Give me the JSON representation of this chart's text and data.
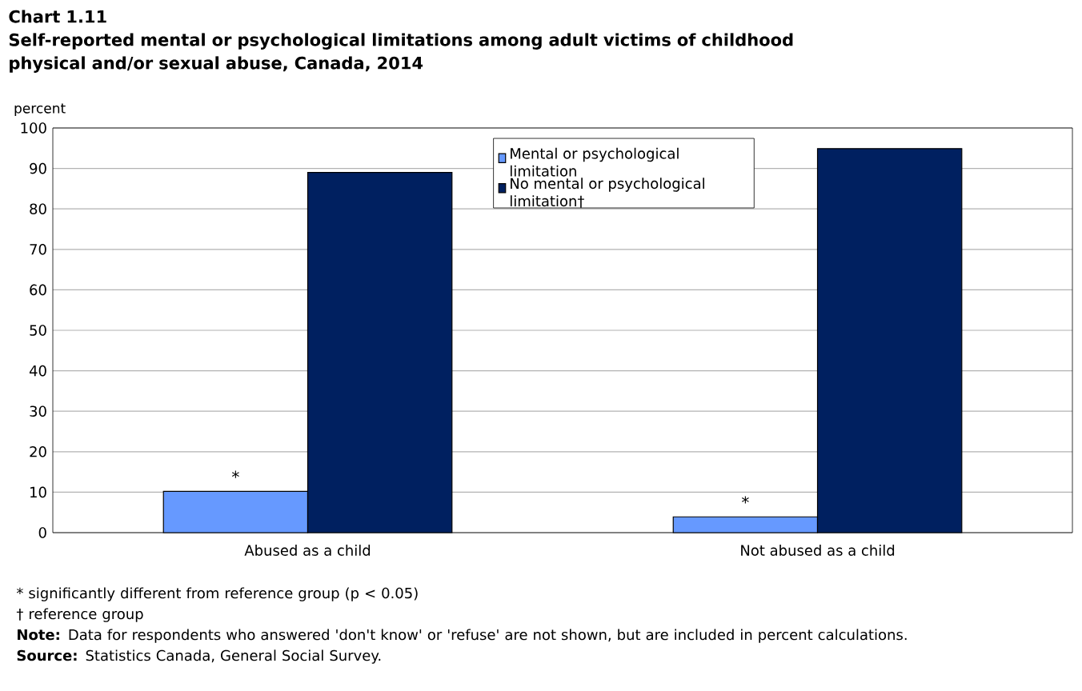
{
  "chart_data": {
    "type": "bar",
    "title": "Chart 1.11",
    "subtitle": "Self-reported mental or psychological limitations among adult victims of childhood physical and/or sexual abuse, Canada, 2014",
    "ylabel": "percent",
    "categories": [
      "Abused as a child",
      "Not abused as a child"
    ],
    "series": [
      {
        "name": "Mental or psychological limitation",
        "color": "#6699ff",
        "values": [
          10.2,
          3.9
        ],
        "value_labels": [
          "*",
          "*"
        ]
      },
      {
        "name": "No mental or psychological limitation†",
        "color": "#002060",
        "values": [
          89.0,
          94.9
        ]
      }
    ],
    "ylim": [
      0,
      100
    ],
    "yticks": [
      0,
      10,
      20,
      30,
      40,
      50,
      60,
      70,
      80,
      90,
      100
    ],
    "grid": "y",
    "legend": "top",
    "annotations": [
      "* significantly different from reference group (p < 0.05)",
      "† reference group",
      "**Note:** Data for respondents who answered 'don't know' or 'refuse'  are not shown, but are included in percent calculations.",
      "**Source:** Statistics Canada, General Social Survey."
    ]
  }
}
